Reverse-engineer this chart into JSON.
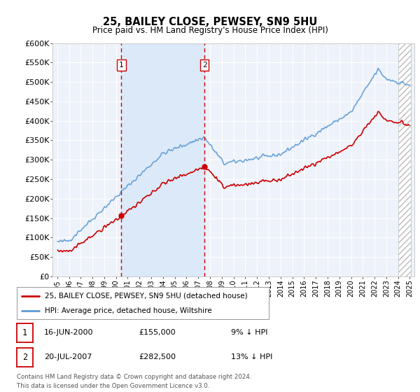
{
  "title": "25, BAILEY CLOSE, PEWSEY, SN9 5HU",
  "subtitle": "Price paid vs. HM Land Registry's House Price Index (HPI)",
  "background_color": "#ffffff",
  "plot_bg_color": "#eef2fa",
  "grid_color": "#ffffff",
  "sale1_t": 2000.458,
  "sale1_price": 155000,
  "sale2_t": 2007.542,
  "sale2_price": 282500,
  "legend_line1": "25, BAILEY CLOSE, PEWSEY, SN9 5HU (detached house)",
  "legend_line2": "HPI: Average price, detached house, Wiltshire",
  "table_row1": [
    "1",
    "16-JUN-2000",
    "£155,000",
    "9% ↓ HPI"
  ],
  "table_row2": [
    "2",
    "20-JUL-2007",
    "£282,500",
    "13% ↓ HPI"
  ],
  "footer": "Contains HM Land Registry data © Crown copyright and database right 2024.\nThis data is licensed under the Open Government Licence v3.0.",
  "ylim": [
    0,
    600000
  ],
  "yticks": [
    0,
    50000,
    100000,
    150000,
    200000,
    250000,
    300000,
    350000,
    400000,
    450000,
    500000,
    550000,
    600000
  ],
  "hpi_color": "#5b9bd5",
  "price_color": "#cc0000",
  "sale_marker_color": "#cc0000",
  "shaded_region_color": "#dce9f8",
  "hatch_color": "#aaaaaa",
  "xmin": 1995.0,
  "xmax": 2025.0
}
